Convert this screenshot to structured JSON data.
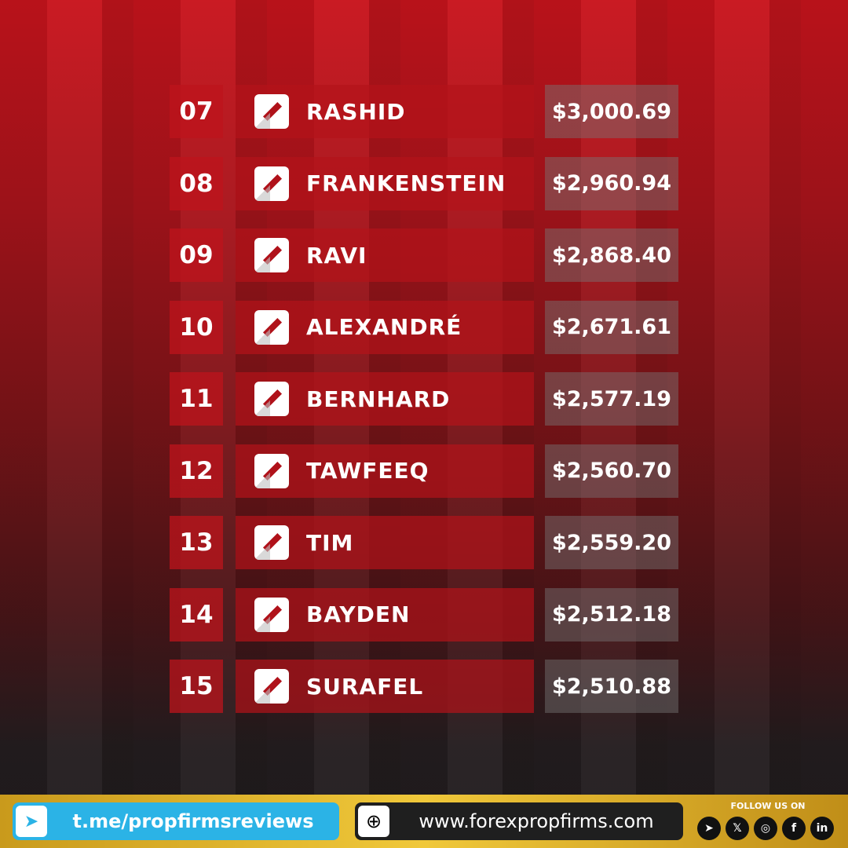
{
  "leaderboard": [
    {
      "rank": "07",
      "name": "RASHID",
      "amount": "$3,000.69"
    },
    {
      "rank": "08",
      "name": "FRANKENSTEIN",
      "amount": "$2,960.94"
    },
    {
      "rank": "09",
      "name": "RAVI",
      "amount": "$2,868.40"
    },
    {
      "rank": "10",
      "name": "ALEXANDRÉ",
      "amount": "$2,671.61"
    },
    {
      "rank": "11",
      "name": "BERNHARD",
      "amount": "$2,577.19"
    },
    {
      "rank": "12",
      "name": "TAWFEEQ",
      "amount": "$2,560.70"
    },
    {
      "rank": "13",
      "name": "TIM",
      "amount": "$2,559.20"
    },
    {
      "rank": "14",
      "name": "BAYDEN",
      "amount": "$2,512.18"
    },
    {
      "rank": "15",
      "name": "SURAFEL",
      "amount": "$2,510.88"
    }
  ],
  "watermark": "www.forexpropfirms.com",
  "footer": {
    "telegram_link": "t.me/propfirmsreviews",
    "website": "www.forexpropfirms.com",
    "follow_label": "FOLLOW US ON",
    "socials": [
      "telegram-icon",
      "x-icon",
      "instagram-icon",
      "facebook-icon",
      "linkedin-icon"
    ]
  },
  "colors": {
    "accent": "#c8141c",
    "telegram": "#2bb3e6",
    "gold": "#f0c83a"
  }
}
